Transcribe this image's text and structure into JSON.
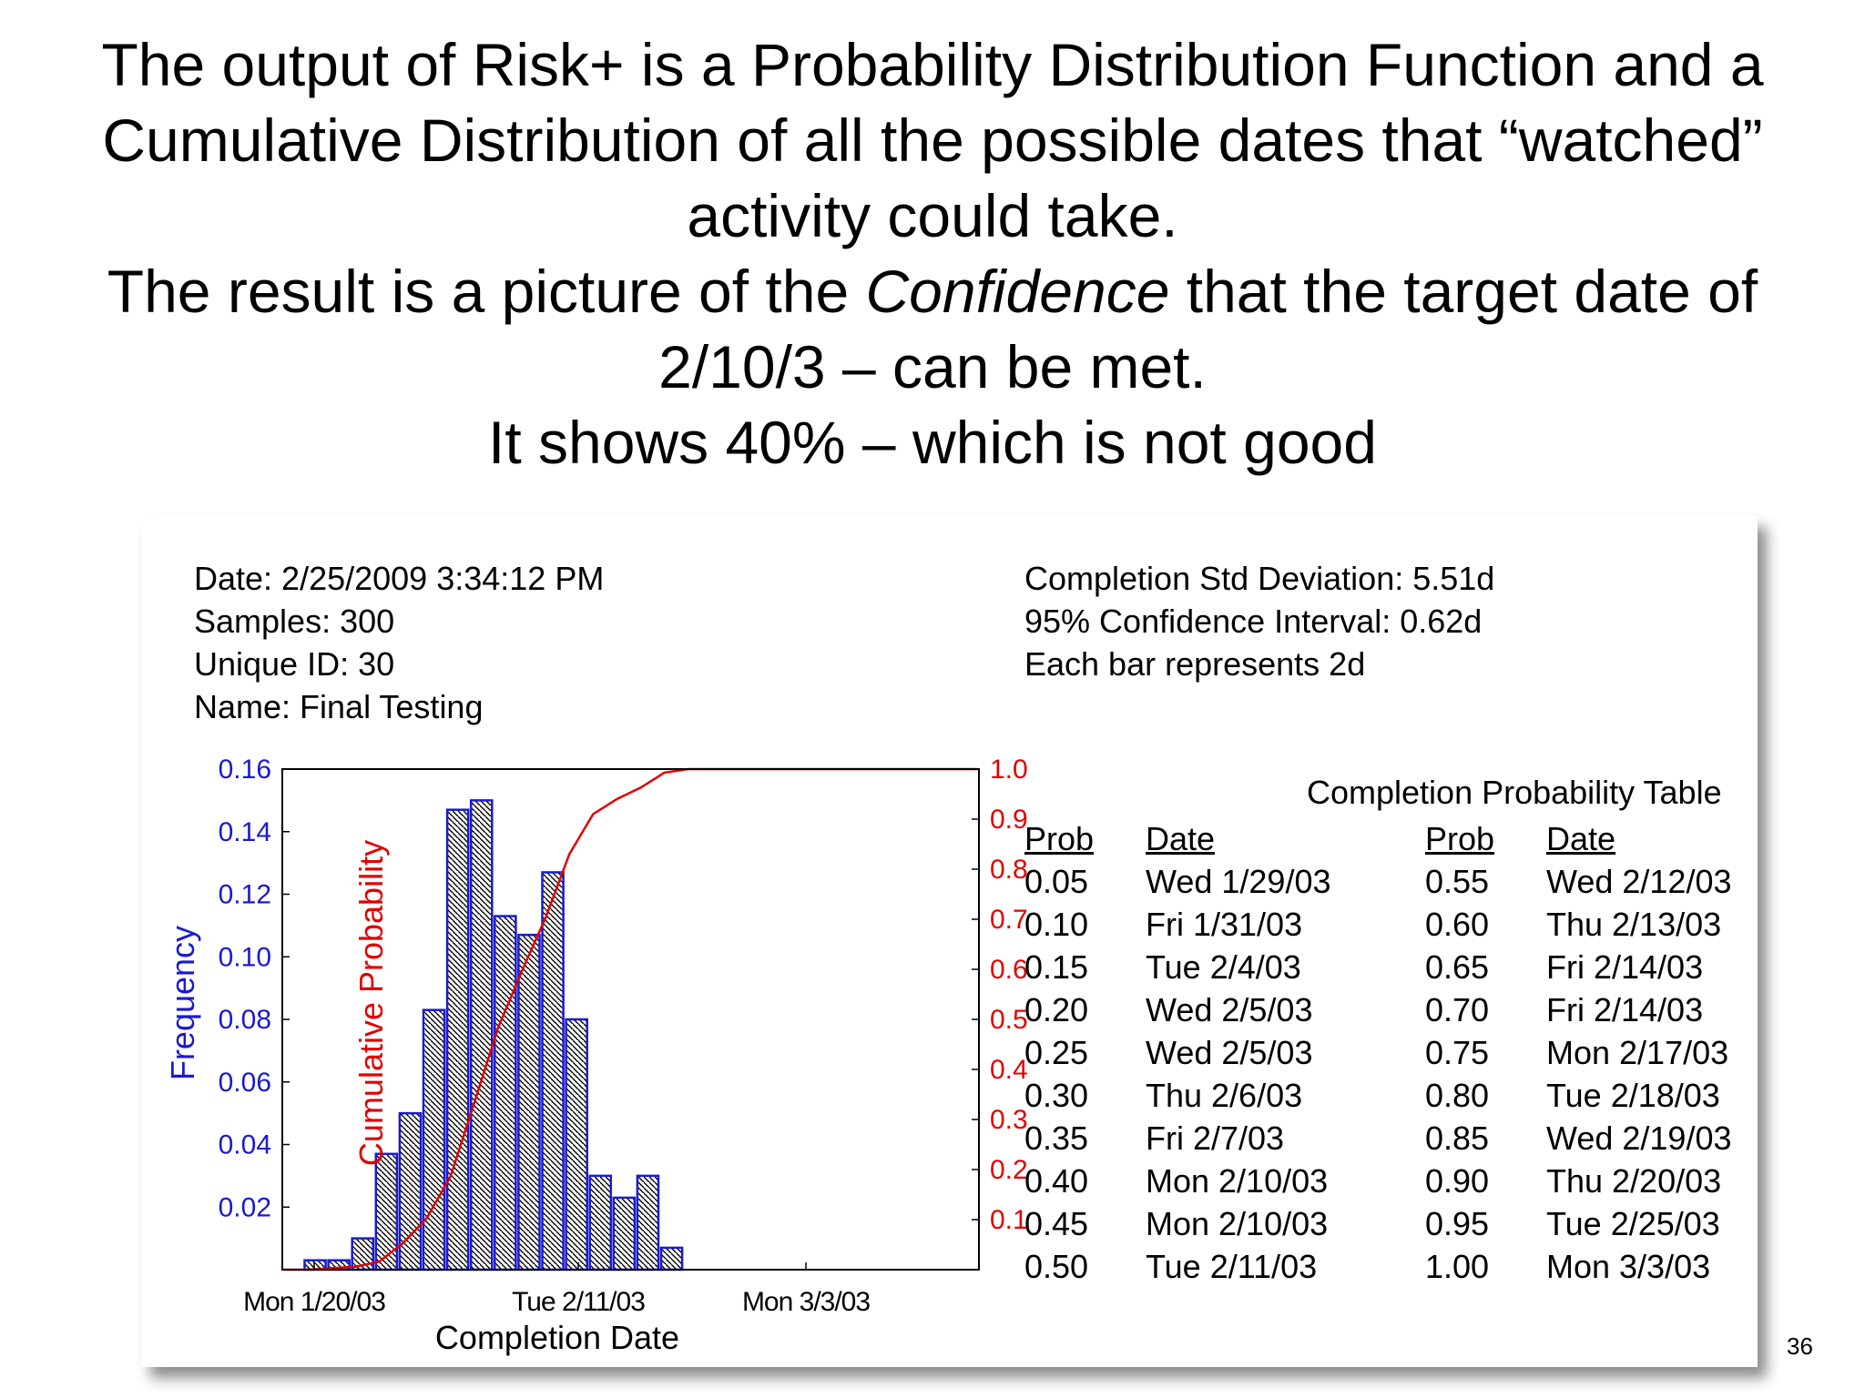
{
  "heading": {
    "line1": "The output of Risk+ is a Probability Distribution Function and a",
    "line2": "Cumulative Distribution of all the possible dates that “watched”",
    "line3": "activity could take.",
    "line4_pre": "The result is a picture of the ",
    "line4_em": "Confidence",
    "line4_post": " that the target date of",
    "line5": "2/10/3 – can be met.",
    "line6": "It shows 40% – which is not good"
  },
  "slide_number": "36",
  "info_left": [
    "Date: 2/25/2009 3:34:12 PM",
    "Samples: 300",
    "Unique ID: 30",
    "Name: Final Testing"
  ],
  "info_right": [
    "Completion Std Deviation: 5.51d",
    "95% Confidence Interval: 0.62d",
    "Each bar represents 2d"
  ],
  "colors": {
    "frequency_axis": "#1a1ad0",
    "cumulative_axis": "#e00000",
    "bar_outline": "#1a1ad0",
    "bar_hatch": "#000000"
  },
  "chart_data": {
    "type": "bar",
    "xlabel": "Completion Date",
    "ylabel": "Frequency",
    "y2label": "Cumulative Probability",
    "x_tick_labels": [
      "Mon 1/20/03",
      "Tue 2/11/03",
      "Mon 3/3/03"
    ],
    "y_ticks": [
      "0.02",
      "0.04",
      "0.06",
      "0.08",
      "0.10",
      "0.12",
      "0.14",
      "0.16"
    ],
    "y2_ticks": [
      "0.1",
      "0.2",
      "0.3",
      "0.4",
      "0.5",
      "0.6",
      "0.7",
      "0.8",
      "0.9",
      "1.0"
    ],
    "ylim": [
      0,
      0.16
    ],
    "y2lim": [
      0,
      1.0
    ],
    "bar_span_days": 2,
    "bars": [
      0.003,
      0.003,
      0.01,
      0.037,
      0.05,
      0.083,
      0.147,
      0.15,
      0.113,
      0.107,
      0.127,
      0.08,
      0.03,
      0.023,
      0.03,
      0.007
    ],
    "cumulative": [
      0.0,
      0.0,
      0.003,
      0.006,
      0.016,
      0.053,
      0.103,
      0.186,
      0.333,
      0.483,
      0.596,
      0.703,
      0.83,
      0.91,
      0.94,
      0.963,
      0.993,
      1.0,
      1.0
    ],
    "grid": false,
    "legend": "none"
  },
  "prob_table": {
    "title": "Completion Probability Table",
    "header_prob": "Prob",
    "header_date": "Date",
    "left": [
      {
        "prob": "0.05",
        "date": "Wed 1/29/03"
      },
      {
        "prob": "0.10",
        "date": "Fri 1/31/03"
      },
      {
        "prob": "0.15",
        "date": "Tue 2/4/03"
      },
      {
        "prob": "0.20",
        "date": "Wed 2/5/03"
      },
      {
        "prob": "0.25",
        "date": "Wed 2/5/03"
      },
      {
        "prob": "0.30",
        "date": "Thu 2/6/03"
      },
      {
        "prob": "0.35",
        "date": "Fri 2/7/03"
      },
      {
        "prob": "0.40",
        "date": "Mon 2/10/03"
      },
      {
        "prob": "0.45",
        "date": "Mon 2/10/03"
      },
      {
        "prob": "0.50",
        "date": "Tue 2/11/03"
      }
    ],
    "right": [
      {
        "prob": "0.55",
        "date": "Wed 2/12/03"
      },
      {
        "prob": "0.60",
        "date": "Thu 2/13/03"
      },
      {
        "prob": "0.65",
        "date": "Fri 2/14/03"
      },
      {
        "prob": "0.70",
        "date": "Fri 2/14/03"
      },
      {
        "prob": "0.75",
        "date": "Mon 2/17/03"
      },
      {
        "prob": "0.80",
        "date": "Tue 2/18/03"
      },
      {
        "prob": "0.85",
        "date": "Wed 2/19/03"
      },
      {
        "prob": "0.90",
        "date": "Thu 2/20/03"
      },
      {
        "prob": "0.95",
        "date": "Tue 2/25/03"
      },
      {
        "prob": "1.00",
        "date": "Mon 3/3/03"
      }
    ]
  }
}
